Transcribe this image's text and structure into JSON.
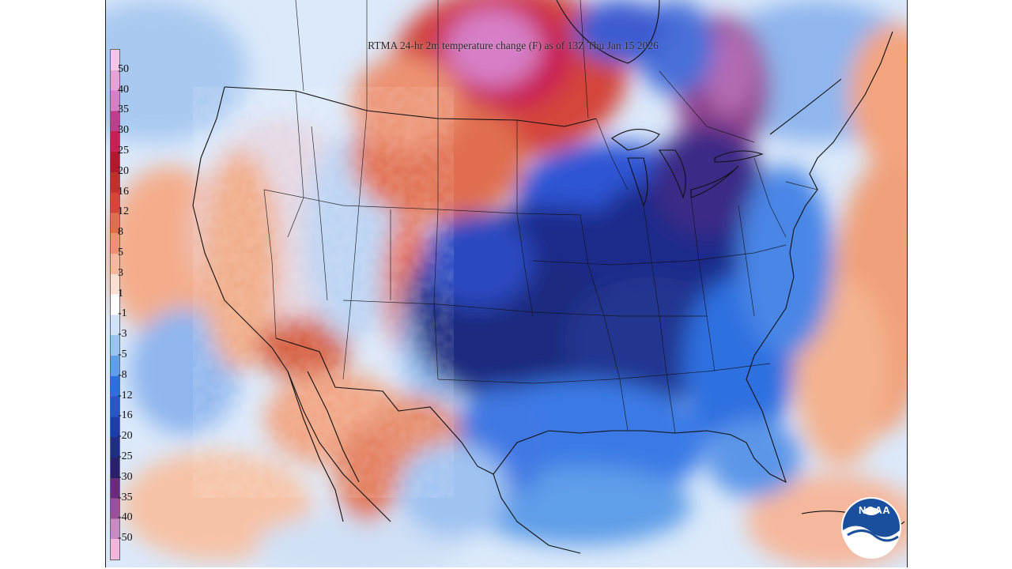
{
  "map": {
    "title": "RTMA 24-hr 2m temperature change (F) as of 13Z Thu Jan 15 2026",
    "logo_text": "NOAA",
    "legend": {
      "labels": [
        "50",
        "40",
        "35",
        "30",
        "25",
        "20",
        "16",
        "12",
        "8",
        "5",
        "3",
        "1",
        "-1",
        "-3",
        "-5",
        "-8",
        "-12",
        "-16",
        "-20",
        "-25",
        "-30",
        "-35",
        "-40",
        "-50"
      ],
      "colors": [
        "#f4c6e6",
        "#e8a2d8",
        "#d67fc6",
        "#c03d8c",
        "#c81f55",
        "#b3192e",
        "#c0302c",
        "#d4453a",
        "#e06e50",
        "#ec9272",
        "#f6b89c",
        "#fbe0d2",
        "#ffffff",
        "#cfe2f7",
        "#9bc3f0",
        "#5f9ee8",
        "#2e6fe0",
        "#2a55c8",
        "#1e3da8",
        "#1e2c8a",
        "#2a1f6e",
        "#6a2a7e",
        "#9b4f9a",
        "#c98ac2",
        "#f0b6dc"
      ]
    },
    "features": {
      "cold_core": "Central & Southern Plains / Mississippi Valley",
      "warm_core": "Northern Plains / Canadian Prairies"
    }
  }
}
